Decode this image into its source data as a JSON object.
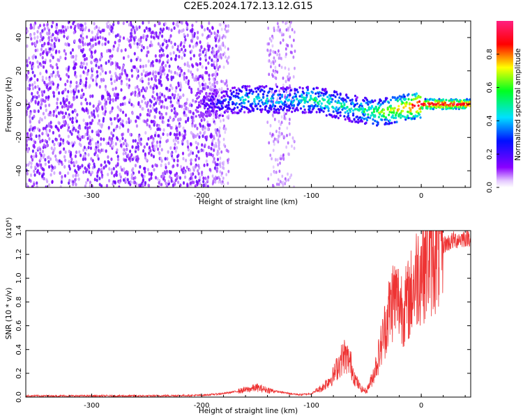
{
  "title": "C2E5.2024.172.13.12.G15",
  "chart_data": [
    {
      "type": "heatmap",
      "xlabel": "Height of straight line (km)",
      "ylabel": "Frequency (Hz)",
      "xlim": [
        -360,
        45
      ],
      "ylim": [
        -50,
        50
      ],
      "xticks": [
        -300,
        -200,
        -100,
        0
      ],
      "yticks": [
        -40,
        -20,
        0,
        20,
        40
      ],
      "colorbar": {
        "label": "Normalized spectral amplitude",
        "range": [
          0,
          1
        ],
        "ticks": [
          "0.0",
          "0.2",
          "0.4",
          "0.6",
          "0.8"
        ],
        "colormap": "rainbow (purple-blue-cyan-green-yellow-red-magenta)"
      },
      "ridge": {
        "description": "dominant signal track",
        "x": [
          -200,
          -180,
          -160,
          -140,
          -120,
          -100,
          -80,
          -60,
          -40,
          -20,
          0,
          20,
          45
        ],
        "y": [
          0,
          1,
          3,
          3,
          2,
          3,
          0,
          -3,
          -5,
          -3,
          0,
          0,
          0
        ],
        "amplitude": [
          0.15,
          0.3,
          0.45,
          0.45,
          0.4,
          0.5,
          0.5,
          0.45,
          0.6,
          0.75,
          0.95,
          0.95,
          0.95
        ]
      }
    },
    {
      "type": "line",
      "xlabel": "Height of straight line (km)",
      "ylabel": "SNR (10 * v/v)",
      "y_multiplier": "(x10⁴)",
      "xlim": [
        -360,
        45
      ],
      "ylim": [
        0,
        1.4
      ],
      "xticks": [
        -300,
        -200,
        -100,
        0
      ],
      "yticks": [
        "0.0",
        "0.2",
        "0.4",
        "0.6",
        "0.8",
        "1.0",
        "1.2",
        "1.4"
      ],
      "series": [
        {
          "color": "#ee3333",
          "x": [
            -360,
            -300,
            -250,
            -200,
            -180,
            -160,
            -150,
            -140,
            -120,
            -110,
            -100,
            -90,
            -80,
            -75,
            -70,
            -65,
            -60,
            -55,
            -50,
            -45,
            -40,
            -35,
            -30,
            -25,
            -20,
            -15,
            -10,
            -5,
            0,
            5,
            10,
            15,
            20,
            25,
            30,
            35,
            40,
            45
          ],
          "y": [
            0.01,
            0.01,
            0.01,
            0.015,
            0.03,
            0.06,
            0.08,
            0.06,
            0.03,
            0.02,
            0.03,
            0.08,
            0.18,
            0.28,
            0.35,
            0.3,
            0.15,
            0.07,
            0.05,
            0.15,
            0.3,
            0.5,
            0.7,
            0.85,
            0.8,
            0.75,
            0.85,
            1.0,
            1.1,
            1.15,
            1.2,
            1.25,
            1.28,
            1.3,
            1.32,
            1.33,
            1.34,
            1.35
          ]
        }
      ]
    }
  ]
}
